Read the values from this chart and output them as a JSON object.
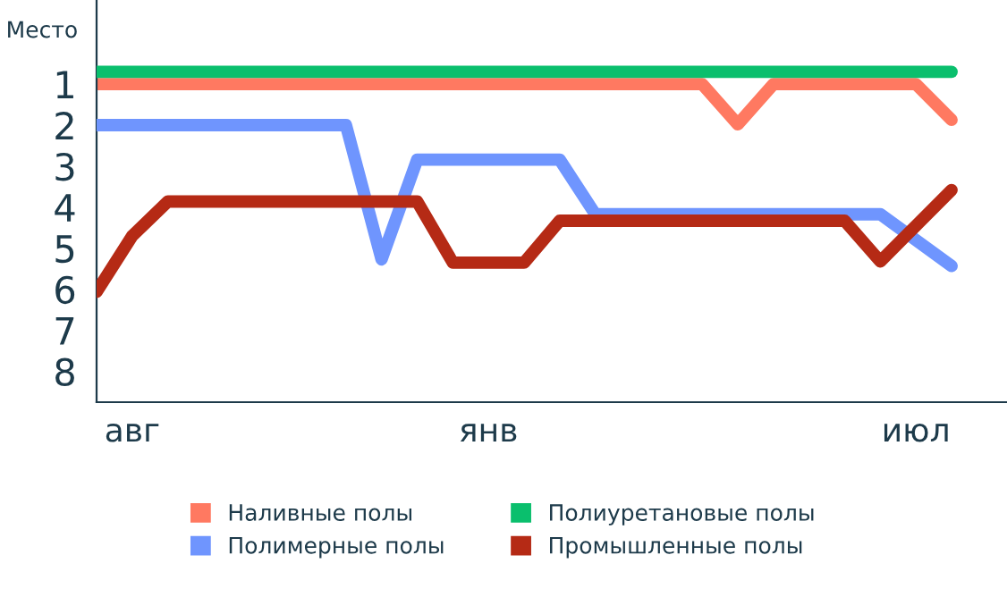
{
  "chart_data": {
    "type": "line",
    "ylabel": "Место",
    "categories": [
      null,
      "авг",
      null,
      null,
      null,
      null,
      null,
      null,
      null,
      null,
      null,
      "янв",
      null,
      null,
      null,
      null,
      null,
      null,
      null,
      null,
      null,
      null,
      null,
      "июл",
      null
    ],
    "ylim": [
      8.75,
      -1.05
    ],
    "yticks": [
      1,
      2,
      3,
      4,
      5,
      6,
      7,
      8
    ],
    "grid": false,
    "legend": "bottom",
    "marker": "none",
    "line_style": "solid",
    "series": [
      {
        "name": "Наливные полы",
        "color": "#ff7961",
        "values": [
          1.0,
          1.0,
          1.0,
          1.0,
          1.0,
          1.0,
          1.0,
          1.0,
          1.0,
          1.0,
          1.0,
          1.0,
          1.0,
          1.0,
          1.0,
          1.0,
          1.0,
          1.0,
          1.98,
          1.0,
          1.0,
          1.0,
          1.0,
          1.0,
          1.87
        ]
      },
      {
        "name": "Полимерные полы",
        "color": "#6f95fe",
        "values": [
          2.0,
          2.0,
          2.0,
          2.0,
          2.0,
          2.0,
          2.0,
          2.0,
          5.27,
          2.84,
          2.84,
          2.84,
          2.84,
          2.84,
          4.17,
          4.17,
          4.17,
          4.17,
          4.17,
          4.17,
          4.17,
          4.17,
          4.17,
          4.8,
          5.43
        ]
      },
      {
        "name": "Полиуретановые полы",
        "color": "#0abf6d",
        "values": [
          0.7,
          0.7,
          0.7,
          0.7,
          0.7,
          0.7,
          0.7,
          0.7,
          0.7,
          0.7,
          0.7,
          0.7,
          0.7,
          0.7,
          0.7,
          0.7,
          0.7,
          0.7,
          0.7,
          0.7,
          0.7,
          0.7,
          0.7,
          0.7,
          0.7
        ]
      },
      {
        "name": "Промышленные полы",
        "color": "#b52a15",
        "values": [
          6.06,
          4.7,
          3.86,
          3.86,
          3.86,
          3.86,
          3.86,
          3.86,
          3.86,
          3.86,
          5.35,
          5.35,
          5.35,
          4.33,
          4.33,
          4.33,
          4.33,
          4.33,
          4.33,
          4.33,
          4.33,
          4.33,
          5.32,
          4.45,
          3.58
        ]
      }
    ]
  }
}
